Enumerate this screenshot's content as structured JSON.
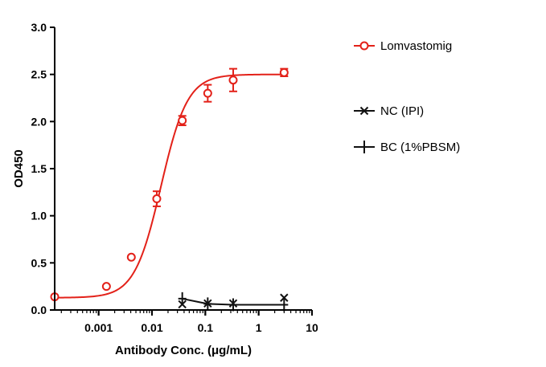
{
  "chart_data": {
    "type": "scatter",
    "xscale": "log",
    "xlabel": "Antibody Conc. (μg/mL)",
    "ylabel": "OD450",
    "xlim": [
      0.00015,
      10
    ],
    "ylim": [
      0,
      3.0
    ],
    "xticks": [
      {
        "value": 0.001,
        "label": "0.001"
      },
      {
        "value": 0.01,
        "label": "0.01"
      },
      {
        "value": 0.1,
        "label": "0.1"
      },
      {
        "value": 1,
        "label": "1"
      },
      {
        "value": 10,
        "label": "10"
      }
    ],
    "yticks": [
      {
        "value": 0,
        "label": "0.0"
      },
      {
        "value": 0.5,
        "label": "0.5"
      },
      {
        "value": 1.0,
        "label": "1.0"
      },
      {
        "value": 1.5,
        "label": "1.5"
      },
      {
        "value": 2.0,
        "label": "2.0"
      },
      {
        "value": 2.5,
        "label": "2.5"
      },
      {
        "value": 3.0,
        "label": "3.0"
      }
    ],
    "grid": false,
    "legend_position": "right",
    "series": [
      {
        "name": "Lomvastomig",
        "color": "#e32119",
        "marker": "open-circle",
        "points": [
          {
            "x": 0.00015,
            "y": 0.14,
            "err": 0
          },
          {
            "x": 0.0014,
            "y": 0.25,
            "err": 0
          },
          {
            "x": 0.0041,
            "y": 0.56,
            "err": 0
          },
          {
            "x": 0.0123,
            "y": 1.18,
            "err": 0.08
          },
          {
            "x": 0.037,
            "y": 2.01,
            "err": 0.05
          },
          {
            "x": 0.111,
            "y": 2.3,
            "err": 0.09
          },
          {
            "x": 0.333,
            "y": 2.44,
            "err": 0.12
          },
          {
            "x": 3.0,
            "y": 2.52,
            "err": 0.04
          }
        ],
        "fit_curve": {
          "bottom": 0.13,
          "top": 2.5,
          "log_ec50": -1.83,
          "hill": 1.75
        }
      },
      {
        "name": "NC (IPI)",
        "color": "#111111",
        "marker": "x",
        "points": [
          {
            "x": 0.037,
            "y": 0.06
          },
          {
            "x": 0.111,
            "y": 0.07
          },
          {
            "x": 0.333,
            "y": 0.07
          },
          {
            "x": 3.0,
            "y": 0.13
          }
        ]
      },
      {
        "name": "BC (1%PBSM)",
        "color": "#111111",
        "marker": "plus",
        "points": [
          {
            "x": 0.037,
            "y": 0.12
          },
          {
            "x": 0.111,
            "y": 0.065
          },
          {
            "x": 0.333,
            "y": 0.055
          },
          {
            "x": 3.0,
            "y": 0.055
          }
        ]
      }
    ]
  }
}
